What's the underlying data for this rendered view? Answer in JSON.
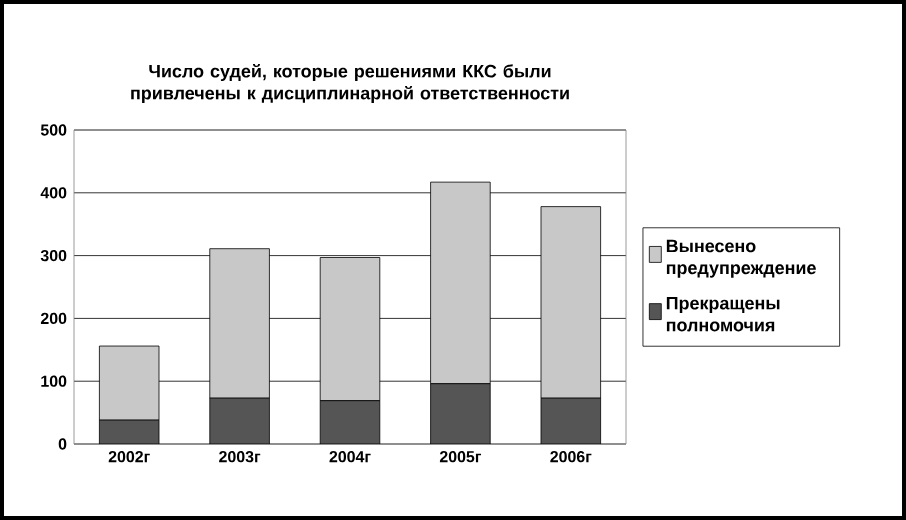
{
  "chart_data": {
    "type": "bar",
    "stacked": true,
    "title": "Число судей, которые решениями ККС были привлечены к дисциплинарной ответственности",
    "categories": [
      "2002г",
      "2003г",
      "2004г",
      "2005г",
      "2006г"
    ],
    "series": [
      {
        "name": "Прекращены полномочия",
        "color": "#555555",
        "values": [
          38,
          73,
          69,
          96,
          73
        ]
      },
      {
        "name": "Вынесено предупреждение",
        "color": "#c8c8c8",
        "values": [
          118,
          238,
          228,
          321,
          305
        ]
      }
    ],
    "ylim": [
      0,
      500
    ],
    "yticks": [
      0,
      100,
      200,
      300,
      400,
      500
    ],
    "grid": "y",
    "legend": "right"
  }
}
